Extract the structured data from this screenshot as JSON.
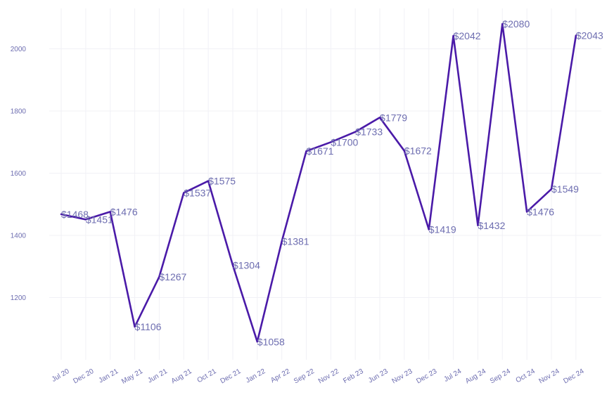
{
  "chart_data": {
    "type": "line",
    "title": "",
    "xlabel": "",
    "ylabel": "",
    "categories": [
      "Jul 20",
      "Dec 20",
      "Jan 21",
      "May 21",
      "Jun 21",
      "Aug 21",
      "Oct 21",
      "Dec 21",
      "Jan 22",
      "Apr 22",
      "Sep 22",
      "Nov 22",
      "Feb 23",
      "Jun 23",
      "Nov 23",
      "Dec 23",
      "Jul 24",
      "Aug 24",
      "Sep 24",
      "Oct 24",
      "Nov 24",
      "Dec 24"
    ],
    "series": [
      {
        "values": [
          1468,
          1451,
          1476,
          1106,
          1267,
          1537,
          1575,
          1304,
          1058,
          1381,
          1671,
          1700,
          1733,
          1779,
          1672,
          1419,
          2042,
          1432,
          2080,
          1476,
          1549,
          2043
        ],
        "labels": [
          "$1468",
          "$1451",
          "$1476",
          "$1106",
          "$1267",
          "$1537",
          "$1575",
          "$1304",
          "$1058",
          "$1381",
          "$1671",
          "$1700",
          "$1733",
          "$1779",
          "$1672",
          "$1419",
          "$2042",
          "$1432",
          "$2080",
          "$1476",
          "$1549",
          "$2043"
        ],
        "color": "#4a1aa8"
      }
    ],
    "yticks": [
      1200,
      1400,
      1600,
      1800,
      2000
    ],
    "ytick_labels": [
      "1200",
      "1400",
      "1600",
      "1800",
      "2000"
    ],
    "ylim": [
      1000,
      2130
    ],
    "grid": true,
    "legend": "none"
  }
}
